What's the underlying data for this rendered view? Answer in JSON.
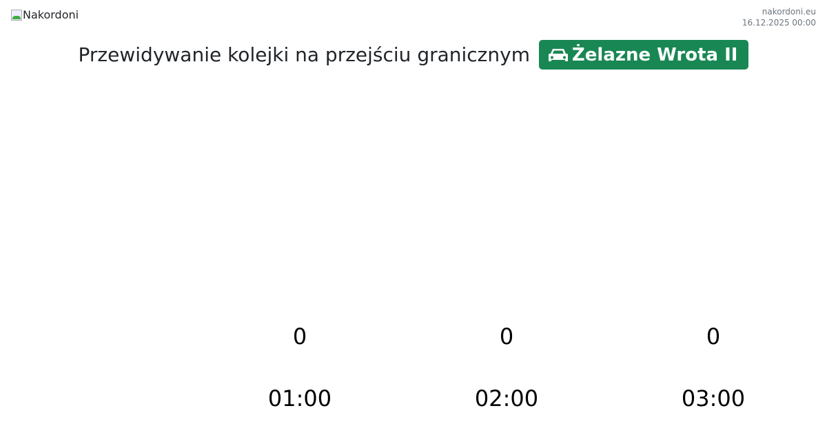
{
  "header": {
    "logo_alt": "Nakordoni",
    "site": "nakordoni.eu",
    "datetime": "16.12.2025 00:00"
  },
  "title": {
    "text": "Przewidywanie kolejki na przejściu granicznym",
    "crossing": "Żelazne Wrota II",
    "crossing_icon": "car-icon",
    "accent": "#198754"
  },
  "forecast": [
    {
      "time": "01:00",
      "value": "0"
    },
    {
      "time": "02:00",
      "value": "0"
    },
    {
      "time": "03:00",
      "value": "0"
    }
  ]
}
